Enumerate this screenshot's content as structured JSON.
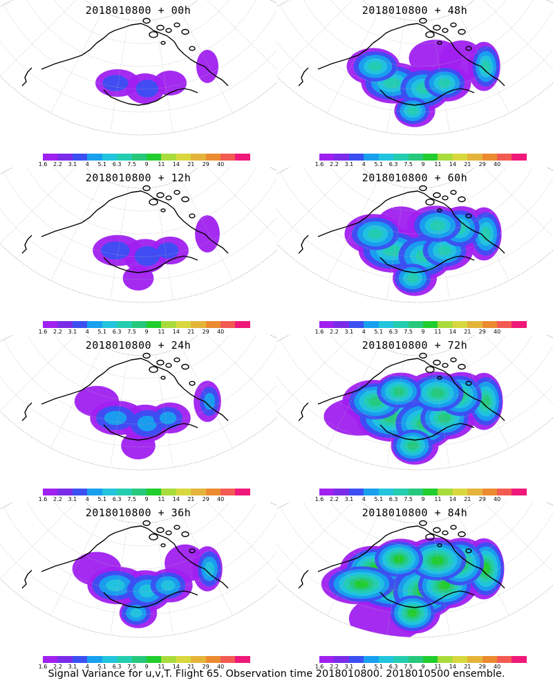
{
  "figure": {
    "caption": "Signal Variance for u,v,T. Flight 65. Observation time 2018010800. 2018010500 ensemble."
  },
  "colorbar": {
    "labels": [
      "1.6",
      "2.2",
      "3.1",
      "4",
      "5.1",
      "6.3",
      "7.5",
      "9",
      "11",
      "14",
      "21",
      "29",
      "40"
    ],
    "colors": [
      "#a020f0",
      "#7a2ce8",
      "#3b4ff2",
      "#18a0ee",
      "#22c4de",
      "#24cdb0",
      "#26c87c",
      "#22cd2e",
      "#a8dc3c",
      "#d8d83e",
      "#e4b43a",
      "#ec8a30",
      "#f25a52",
      "#f0187a"
    ]
  },
  "panels": [
    {
      "title": "2018010800 + 00h",
      "level": 0
    },
    {
      "title": "2018010800 + 48h",
      "level": 4
    },
    {
      "title": "2018010800 + 12h",
      "level": 1
    },
    {
      "title": "2018010800 + 60h",
      "level": 5
    },
    {
      "title": "2018010800 + 24h",
      "level": 2
    },
    {
      "title": "2018010800 + 72h",
      "level": 6
    },
    {
      "title": "2018010800 + 36h",
      "level": 3
    },
    {
      "title": "2018010800 + 84h",
      "level": 7
    }
  ]
}
